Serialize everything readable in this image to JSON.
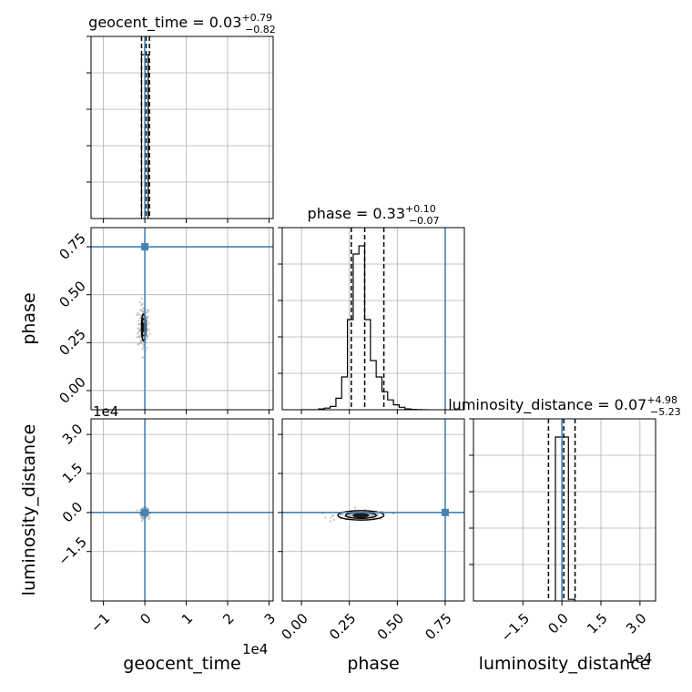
{
  "chart_data": {
    "type": "corner",
    "colors": {
      "hist": "#000000",
      "truth": "#4682b4",
      "grid": "#b0b0b0",
      "scatter": "#b4b4b4"
    },
    "grid": true,
    "parameters": [
      {
        "name": "geocent_time",
        "label": "geocent_time",
        "range": [
          -13000,
          31000
        ],
        "ticks": [
          -10000,
          0,
          10000,
          20000,
          30000
        ],
        "tick_labels": [
          "−1",
          "0",
          "1",
          "2",
          "3"
        ],
        "offset_text": "1e4",
        "truth": 0,
        "title_main": "geocent_time = 0.03",
        "title_plus": "+0.79",
        "title_minus": "−0.82",
        "hist": {
          "bin_edges": [
            -800,
            0,
            800
          ],
          "counts": [
            1.0,
            1.0
          ]
        },
        "quantiles": [
          -800,
          300,
          1100
        ],
        "median": 300
      },
      {
        "name": "phase",
        "label": "phase",
        "range": [
          -0.1,
          0.85
        ],
        "ticks": [
          0.0,
          0.25,
          0.5,
          0.75
        ],
        "tick_labels": [
          "0.00",
          "0.25",
          "0.50",
          "0.75"
        ],
        "truth": 0.75,
        "title_main": "phase = 0.33",
        "title_plus": "+0.10",
        "title_minus": "−0.07",
        "hist": {
          "bin_edges": [
            0.0,
            0.03,
            0.06,
            0.09,
            0.12,
            0.15,
            0.18,
            0.21,
            0.24,
            0.27,
            0.3,
            0.33,
            0.36,
            0.39,
            0.42,
            0.45,
            0.48,
            0.51,
            0.54,
            0.57,
            0.6,
            0.63,
            0.66
          ],
          "counts": [
            0.0,
            0.0,
            0.0,
            0.005,
            0.01,
            0.02,
            0.07,
            0.2,
            0.55,
            0.95,
            1.0,
            0.55,
            0.3,
            0.2,
            0.11,
            0.06,
            0.03,
            0.015,
            0.005,
            0.002,
            0.001,
            0.0
          ]
        },
        "quantiles": [
          0.26,
          0.33,
          0.43
        ],
        "median": 0.33
      },
      {
        "name": "luminosity_distance",
        "label": "luminosity_distance",
        "range": [
          -34000,
          36000
        ],
        "ticks": [
          -15000,
          0,
          15000,
          30000
        ],
        "tick_labels": [
          "−1.5",
          "0.0",
          "1.5",
          "3.0"
        ],
        "offset_text": "1e4",
        "truth": 0,
        "title_main": "luminosity_distance = 0.07",
        "title_plus": "+4.98",
        "title_minus": "−5.23",
        "hist": {
          "bin_edges": [
            -2500,
            0,
            2500,
            5000
          ],
          "counts": [
            1.0,
            1.0,
            0.01
          ]
        },
        "quantiles": [
          -5160,
          700,
          5050
        ],
        "median": 700
      }
    ],
    "pairs": [
      {
        "x": "geocent_time",
        "y": "phase",
        "center": [
          -300,
          0.33
        ],
        "spread": [
          700,
          0.06
        ],
        "contours": [
          [
            500,
            0.07
          ],
          [
            350,
            0.045
          ],
          [
            180,
            0.022
          ]
        ]
      },
      {
        "x": "geocent_time",
        "y": "luminosity_distance",
        "center": [
          -150,
          -150
        ],
        "spread": [
          500,
          900
        ],
        "contours": [
          [
            700,
            1000
          ],
          [
            450,
            650
          ],
          [
            250,
            350
          ]
        ]
      },
      {
        "x": "phase",
        "y": "luminosity_distance",
        "center": [
          0.31,
          -1100
        ],
        "spread": [
          0.07,
          900
        ],
        "contours": [
          [
            0.12,
            1800
          ],
          [
            0.08,
            1150
          ],
          [
            0.04,
            550
          ]
        ]
      }
    ]
  }
}
